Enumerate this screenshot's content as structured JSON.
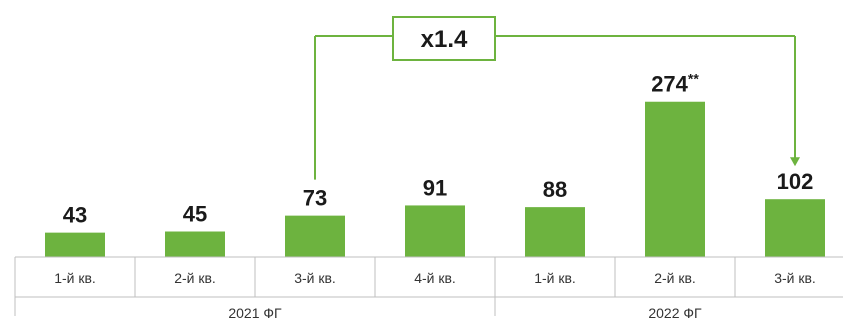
{
  "chart_data": {
    "type": "bar",
    "categories": [
      "1-й кв.",
      "2-й кв.",
      "3-й кв.",
      "4-й кв.",
      "1-й кв.",
      "2-й кв.",
      "3-й кв."
    ],
    "values": [
      43,
      45,
      73,
      91,
      88,
      274,
      102
    ],
    "value_labels": [
      "43",
      "45",
      "73",
      "91",
      "88",
      "274",
      "102"
    ],
    "value_label_suffixes": [
      "",
      "",
      "",
      "",
      "",
      "**",
      ""
    ],
    "groups": [
      {
        "label": "2021 ФГ",
        "count": 4
      },
      {
        "label": "2022 ФГ",
        "count": 3
      }
    ],
    "annotation": {
      "text": "x1.4",
      "from_index": 2,
      "to_index": 6
    },
    "ylim": [
      0,
      300
    ],
    "grid": false,
    "colors": {
      "bar": "#6db33f",
      "annotation": "#6db33f",
      "axis": "#bfbfbf"
    }
  }
}
